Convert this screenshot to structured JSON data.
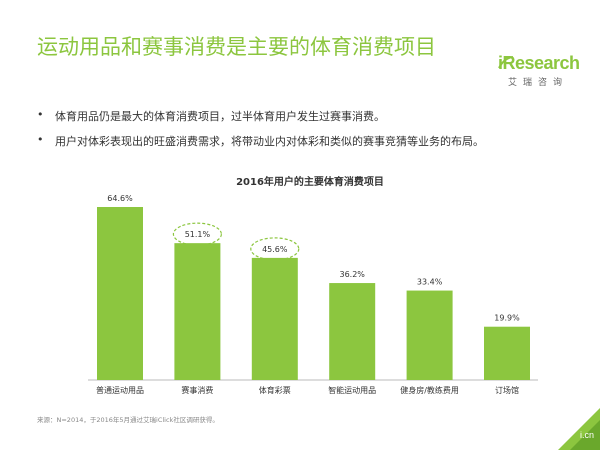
{
  "header": {
    "title": "运动用品和赛事消费是主要的体育消费项目",
    "logo_text": "iResearch",
    "logo_subtext": "艾瑞咨询"
  },
  "bullets": [
    "体育用品仍是最大的体育消费项目，过半体育用户发生过赛事消费。",
    "用户对体彩表现出的旺盛消费需求，将带动业内对体彩和类似的赛事竞猜等业务的布局。"
  ],
  "chart_data": {
    "type": "bar",
    "title": "2016年用户的主要体育消费项目",
    "categories": [
      "普通运动用品",
      "赛事消费",
      "体育彩票",
      "智能运动用品",
      "健身房/教练费用",
      "订场馆"
    ],
    "values": [
      64.6,
      51.1,
      45.6,
      36.2,
      33.4,
      19.9
    ],
    "value_labels": [
      "64.6%",
      "51.1%",
      "45.6%",
      "36.2%",
      "33.4%",
      "19.9%"
    ],
    "highlighted": [
      "赛事消费",
      "体育彩票"
    ],
    "bar_color": "#8cc63f",
    "highlight_color": "#8cc63f",
    "ylim": [
      0,
      64.6
    ],
    "xlabel": "",
    "ylabel": "",
    "grid": false,
    "legend": "none"
  },
  "footer": {
    "source": "来源：N=2014，于2016年5月通过艾瑞iClick社区调研获得。",
    "corner_text": "i.cn"
  },
  "colors": {
    "accent": "#8cc63f",
    "text": "#333333",
    "corner": "#8cc63f"
  }
}
